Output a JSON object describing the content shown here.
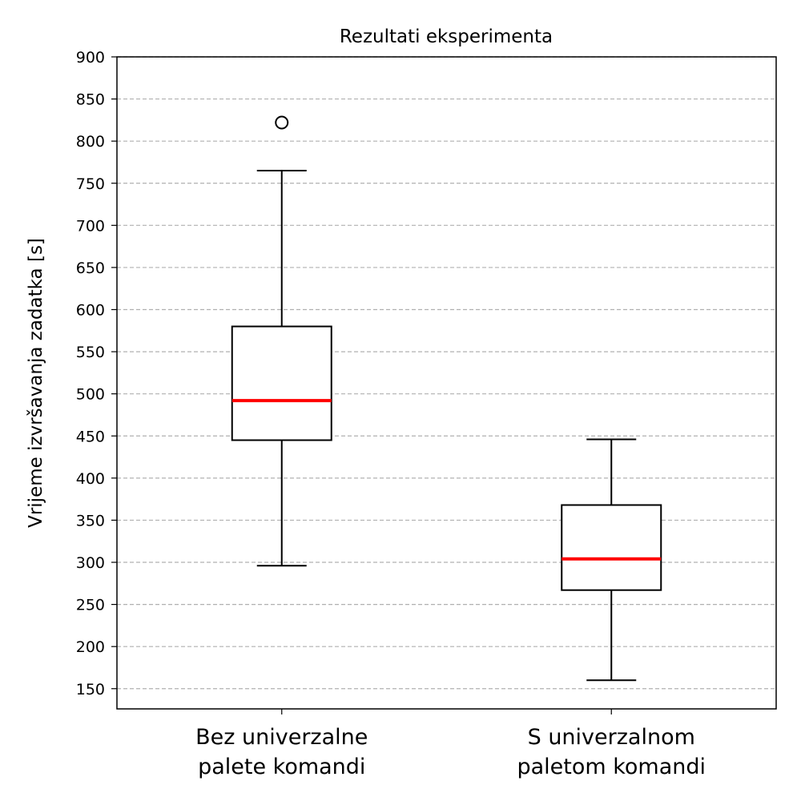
{
  "chart_data": {
    "type": "boxplot",
    "title": "Rezultati eksperimenta",
    "xlabel": "",
    "ylabel": "Vrijeme izvršavanja zadatka [s]",
    "ylim": [
      126,
      900
    ],
    "yticks": [
      150,
      200,
      250,
      300,
      350,
      400,
      450,
      500,
      550,
      600,
      650,
      700,
      750,
      800,
      850,
      900
    ],
    "grid": "y-dashed",
    "categories": [
      [
        "Bez univerzalne",
        "palete komandi"
      ],
      [
        "S univerzalnom",
        "paletom komandi"
      ]
    ],
    "boxes": [
      {
        "whisker_low": 296,
        "q1": 445,
        "median": 492,
        "q3": 580,
        "whisker_high": 765,
        "outliers": [
          822
        ]
      },
      {
        "whisker_low": 160,
        "q1": 267,
        "median": 304,
        "q3": 368,
        "whisker_high": 446,
        "outliers": []
      }
    ],
    "colors": {
      "median": "#ff0000",
      "box": "#000000",
      "grid": "#b0b0b0"
    }
  }
}
